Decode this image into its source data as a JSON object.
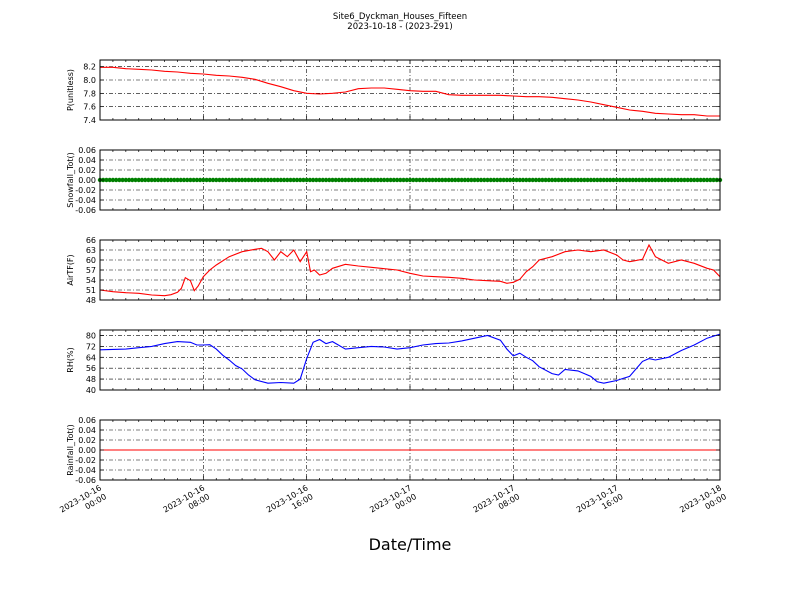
{
  "figure": {
    "title_line1": "Site6_Dyckman_Houses_Fifteen",
    "title_line2": "2023-10-18 - (2023-291)",
    "xlabel": "Date/Time",
    "x_ticks": [
      {
        "l1": "2023-10-16",
        "l2": "00:00"
      },
      {
        "l1": "2023-10-16",
        "l2": "08:00"
      },
      {
        "l1": "2023-10-16",
        "l2": "16:00"
      },
      {
        "l1": "2023-10-17",
        "l2": "00:00"
      },
      {
        "l1": "2023-10-17",
        "l2": "08:00"
      },
      {
        "l1": "2023-10-17",
        "l2": "16:00"
      },
      {
        "l1": "2023-10-18",
        "l2": "00:00"
      }
    ]
  },
  "chart_data": [
    {
      "type": "line",
      "ylabel": "P(unitless)",
      "ylim": [
        7.4,
        8.3
      ],
      "yticks": [
        "7.4",
        "7.6",
        "7.8",
        "8.0",
        "8.2"
      ],
      "grid": true,
      "color": "#ff0000",
      "x_unit": "hours since 2023-10-16 00:00",
      "x": [
        0,
        1,
        2,
        3,
        4,
        5,
        6,
        7,
        8,
        9,
        10,
        11,
        12,
        12.5,
        13,
        14,
        15,
        16,
        17,
        18,
        19,
        20,
        21,
        22,
        23,
        24,
        25,
        26,
        27,
        28,
        29,
        30,
        31,
        32,
        33,
        34,
        35,
        36,
        37,
        38,
        39,
        40,
        41,
        42,
        43,
        44,
        45,
        46,
        47,
        48
      ],
      "y": [
        8.19,
        8.19,
        8.17,
        8.16,
        8.15,
        8.13,
        8.12,
        8.1,
        8.09,
        8.07,
        8.06,
        8.04,
        8.01,
        7.98,
        7.95,
        7.9,
        7.84,
        7.8,
        7.79,
        7.8,
        7.82,
        7.87,
        7.88,
        7.88,
        7.86,
        7.84,
        7.83,
        7.83,
        7.78,
        7.77,
        7.77,
        7.77,
        7.77,
        7.76,
        7.75,
        7.75,
        7.74,
        7.72,
        7.7,
        7.67,
        7.63,
        7.59,
        7.55,
        7.53,
        7.5,
        7.49,
        7.48,
        7.48,
        7.46,
        7.46
      ]
    },
    {
      "type": "scatter",
      "ylabel": "Snowfall_Tot()",
      "ylim": [
        -0.06,
        0.06
      ],
      "yticks": [
        "-0.06",
        "-0.04",
        "-0.02",
        "0.00",
        "0.02",
        "0.04",
        "0.06"
      ],
      "grid": true,
      "color": "#008000",
      "x_unit": "hours since 2023-10-16 00:00",
      "x_range": [
        0,
        48
      ],
      "y_constant": 0
    },
    {
      "type": "line",
      "ylabel": "AirTF(F)",
      "ylim": [
        48,
        66
      ],
      "yticks": [
        "48",
        "51",
        "54",
        "57",
        "60",
        "63",
        "66"
      ],
      "grid": true,
      "color": "#ff0000",
      "x_unit": "hours since 2023-10-16 00:00",
      "x": [
        0,
        1,
        2,
        3,
        4,
        5,
        5.5,
        6,
        6.3,
        6.6,
        7,
        7.3,
        7.6,
        8,
        8.5,
        9,
        10,
        11,
        12,
        12.5,
        13,
        13.5,
        14,
        14.5,
        15,
        15.5,
        16,
        16.3,
        16.6,
        17,
        17.5,
        18,
        19,
        20,
        21,
        22,
        23,
        24,
        25,
        26,
        27,
        28,
        29,
        30,
        31,
        31.5,
        32,
        32.5,
        33,
        33.5,
        34,
        35,
        36,
        37,
        38,
        39,
        40,
        40.5,
        41,
        42,
        42.5,
        43,
        44,
        45,
        46,
        47,
        47.5,
        48
      ],
      "y": [
        51,
        50.5,
        50.2,
        50,
        49.5,
        49.3,
        49.6,
        50.3,
        51.5,
        54.7,
        53.8,
        50.8,
        52.2,
        55,
        57,
        58.5,
        61,
        62.5,
        63.2,
        63.5,
        62.5,
        60,
        62.5,
        61,
        63,
        59.5,
        62.5,
        56.5,
        57,
        55.5,
        56,
        57.5,
        58.7,
        58.2,
        57.8,
        57.4,
        57,
        56,
        55.2,
        55,
        54.8,
        54.5,
        54,
        53.8,
        53.6,
        53,
        53.3,
        54.2,
        56.5,
        58,
        60,
        61,
        62.5,
        63,
        62.5,
        63,
        61.5,
        60,
        59.5,
        60.2,
        64.5,
        61,
        59,
        60,
        59,
        57.5,
        57,
        55
      ],
      "x_note": "endpoint ~48h"
    },
    {
      "type": "line",
      "ylabel": "RH(%)",
      "ylim": [
        40,
        84
      ],
      "yticks": [
        "40",
        "48",
        "56",
        "64",
        "72",
        "80"
      ],
      "grid": true,
      "color": "#0000ff",
      "x_unit": "hours since 2023-10-16 00:00",
      "x": [
        0,
        2,
        3,
        4,
        5,
        6,
        7,
        7.5,
        8,
        8.5,
        9,
        9.5,
        10,
        10.5,
        11,
        11.5,
        12,
        13,
        14,
        15,
        15.5,
        16,
        16.5,
        17,
        17.5,
        18,
        19,
        20,
        21,
        22,
        23,
        24,
        25,
        26,
        27,
        28,
        29,
        30,
        31,
        31.5,
        32,
        32.5,
        33,
        33.5,
        34,
        35,
        35.5,
        36,
        37,
        38,
        38.5,
        39,
        40,
        40.5,
        41,
        42,
        42.5,
        43,
        44,
        45,
        46,
        47,
        48
      ],
      "y": [
        69.5,
        70,
        71,
        72,
        74,
        75.5,
        75,
        73,
        73,
        73.2,
        70,
        65.5,
        62,
        58,
        55.5,
        51,
        47.5,
        45,
        45.5,
        45,
        48,
        63,
        75,
        77,
        74,
        75.5,
        70,
        71,
        72,
        71.5,
        70,
        71,
        73,
        74,
        74.5,
        76,
        78,
        80,
        76.5,
        70,
        65,
        67,
        64,
        61.5,
        57,
        52,
        51,
        55,
        54,
        50,
        46,
        45,
        47,
        48.5,
        50,
        61,
        63,
        62,
        64,
        69,
        73,
        78,
        81
      ]
    },
    {
      "type": "line",
      "ylabel": "Rainfall_Tot()",
      "ylim": [
        -0.06,
        0.06
      ],
      "yticks": [
        "-0.06",
        "-0.04",
        "-0.02",
        "0.00",
        "0.02",
        "0.04",
        "0.06"
      ],
      "grid": true,
      "color": "#ff0000",
      "x_unit": "hours since 2023-10-16 00:00",
      "x": [
        0,
        48
      ],
      "y": [
        0,
        0
      ]
    }
  ]
}
